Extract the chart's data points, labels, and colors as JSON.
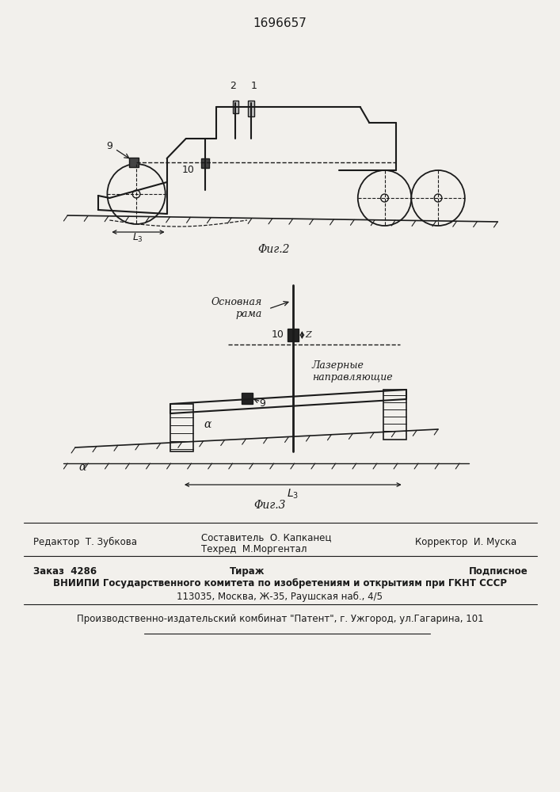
{
  "patent_number": "1696657",
  "bg_color": "#f2f0ec",
  "line_color": "#1a1a1a",
  "fig2_caption": "Φиг.2",
  "fig3_caption": "Φиг.3",
  "label_osnovnaya_rama": "Основная\nрама",
  "label_lazernye": "Лазерные\nнаправляющие",
  "footer_line1_left": "Редактор  Т. Зубкова",
  "footer_sost": "Составитель  О. Капканец",
  "footer_teh": "Техред  М.Моргентал",
  "footer_korr": "Корректор  И. Муска",
  "footer_zakaz": "Заказ  4286",
  "footer_tirazh": "Тираж",
  "footer_podp": "Подписное",
  "footer_vniip": "ВНИИПИ Государственного комитета по изобретениям и открытиям при ГКНТ СССР",
  "footer_addr": "113035, Москва, Ж-35, Раушская наб., 4/5",
  "footer_patent": "Производственно-издательский комбинат \"Патент\", г. Ужгород, ул.Гагарина, 101"
}
